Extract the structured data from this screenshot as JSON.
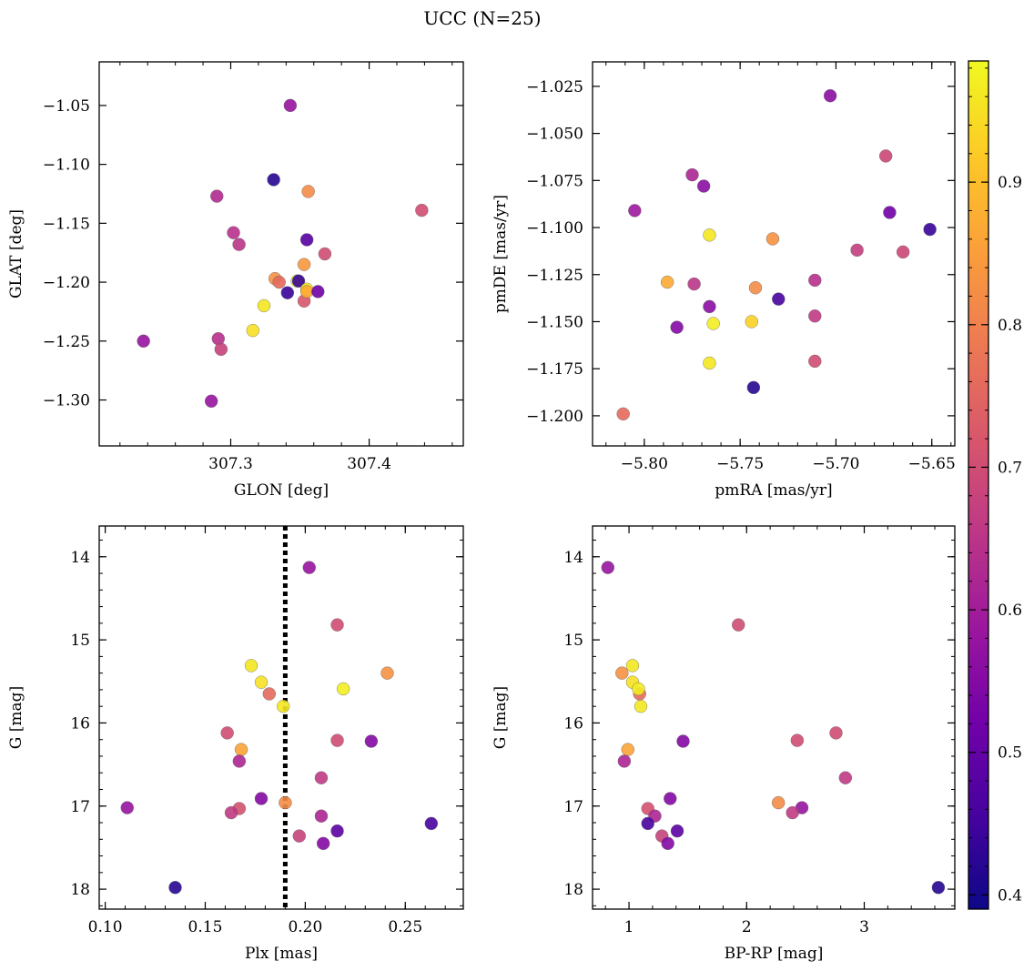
{
  "figure": {
    "suptitle": "UCC (N=25)"
  },
  "colorbar": {
    "vmin": 0.39,
    "vmax": 0.985,
    "ticks": [
      0.4,
      0.5,
      0.6,
      0.7,
      0.8,
      0.9
    ],
    "tick_labels": [
      "0.4",
      "0.5",
      "0.6",
      "0.7",
      "0.8",
      "0.9"
    ],
    "colormap": "plasma",
    "stops": [
      "#0d0887",
      "#46039f",
      "#7201a8",
      "#9c179e",
      "#bd3786",
      "#d8576b",
      "#ed7953",
      "#fb9f3a",
      "#fdca26",
      "#f0f921"
    ]
  },
  "chart_data": [
    {
      "id": "p1",
      "type": "scatter",
      "title": "",
      "xlabel": "GLON [deg]",
      "ylabel": "GLAT [deg]",
      "xlim": [
        307.205,
        307.468
      ],
      "ylim": [
        -1.339,
        -1.013
      ],
      "xticks": [
        307.3,
        307.4
      ],
      "xtick_labels": [
        "307.3",
        "307.4"
      ],
      "yticks": [
        -1.05,
        -1.1,
        -1.15,
        -1.2,
        -1.25,
        -1.3
      ],
      "ytick_labels": [
        "−1.05",
        "−1.10",
        "−1.15",
        "−1.20",
        "−1.25",
        "−1.30"
      ],
      "points": [
        {
          "x": 307.343,
          "y": -1.05,
          "c": 0.58
        },
        {
          "x": 307.331,
          "y": -1.113,
          "c": 0.42
        },
        {
          "x": 307.356,
          "y": -1.123,
          "c": 0.82
        },
        {
          "x": 307.29,
          "y": -1.127,
          "c": 0.63
        },
        {
          "x": 307.438,
          "y": -1.139,
          "c": 0.7
        },
        {
          "x": 307.302,
          "y": -1.158,
          "c": 0.64
        },
        {
          "x": 307.306,
          "y": -1.168,
          "c": 0.65
        },
        {
          "x": 307.355,
          "y": -1.164,
          "c": 0.48
        },
        {
          "x": 307.368,
          "y": -1.176,
          "c": 0.7
        },
        {
          "x": 307.353,
          "y": -1.185,
          "c": 0.84
        },
        {
          "x": 307.332,
          "y": -1.197,
          "c": 0.83
        },
        {
          "x": 307.335,
          "y": -1.2,
          "c": 0.76
        },
        {
          "x": 307.348,
          "y": -1.199,
          "c": 0.98
        },
        {
          "x": 307.349,
          "y": -1.199,
          "c": 0.44
        },
        {
          "x": 307.353,
          "y": -1.216,
          "c": 0.72
        },
        {
          "x": 307.355,
          "y": -1.206,
          "c": 0.97
        },
        {
          "x": 307.355,
          "y": -1.208,
          "c": 0.87
        },
        {
          "x": 307.341,
          "y": -1.209,
          "c": 0.44
        },
        {
          "x": 307.363,
          "y": -1.208,
          "c": 0.52
        },
        {
          "x": 307.324,
          "y": -1.22,
          "c": 0.96
        },
        {
          "x": 307.316,
          "y": -1.241,
          "c": 0.95
        },
        {
          "x": 307.237,
          "y": -1.25,
          "c": 0.58
        },
        {
          "x": 307.291,
          "y": -1.248,
          "c": 0.64
        },
        {
          "x": 307.293,
          "y": -1.257,
          "c": 0.68
        },
        {
          "x": 307.286,
          "y": -1.301,
          "c": 0.58
        }
      ]
    },
    {
      "id": "p2",
      "type": "scatter",
      "title": "",
      "xlabel": "pmRA [mas/yr]",
      "ylabel": "pmDE [mas/yr]",
      "xlim": [
        -5.827,
        -5.638
      ],
      "ylim": [
        -1.216,
        -1.012
      ],
      "xticks": [
        -5.8,
        -5.75,
        -5.7,
        -5.65
      ],
      "xtick_labels": [
        "−5.80",
        "−5.75",
        "−5.70",
        "−5.65"
      ],
      "yticks": [
        -1.025,
        -1.05,
        -1.075,
        -1.1,
        -1.125,
        -1.15,
        -1.175,
        -1.2
      ],
      "ytick_labels": [
        "−1.025",
        "−1.050",
        "−1.075",
        "−1.100",
        "−1.125",
        "−1.150",
        "−1.175",
        "−1.200"
      ],
      "points": [
        {
          "x": -5.703,
          "y": -1.03,
          "c": 0.56
        },
        {
          "x": -5.674,
          "y": -1.062,
          "c": 0.69
        },
        {
          "x": -5.775,
          "y": -1.072,
          "c": 0.62
        },
        {
          "x": -5.769,
          "y": -1.078,
          "c": 0.56
        },
        {
          "x": -5.805,
          "y": -1.091,
          "c": 0.59
        },
        {
          "x": -5.672,
          "y": -1.092,
          "c": 0.52
        },
        {
          "x": -5.651,
          "y": -1.101,
          "c": 0.44
        },
        {
          "x": -5.766,
          "y": -1.104,
          "c": 0.96
        },
        {
          "x": -5.733,
          "y": -1.106,
          "c": 0.83
        },
        {
          "x": -5.689,
          "y": -1.112,
          "c": 0.67
        },
        {
          "x": -5.665,
          "y": -1.113,
          "c": 0.69
        },
        {
          "x": -5.711,
          "y": -1.128,
          "c": 0.64
        },
        {
          "x": -5.788,
          "y": -1.129,
          "c": 0.87
        },
        {
          "x": -5.774,
          "y": -1.13,
          "c": 0.65
        },
        {
          "x": -5.742,
          "y": -1.132,
          "c": 0.82
        },
        {
          "x": -5.73,
          "y": -1.138,
          "c": 0.46
        },
        {
          "x": -5.766,
          "y": -1.142,
          "c": 0.56
        },
        {
          "x": -5.711,
          "y": -1.147,
          "c": 0.66
        },
        {
          "x": -5.744,
          "y": -1.15,
          "c": 0.93
        },
        {
          "x": -5.764,
          "y": -1.151,
          "c": 0.97
        },
        {
          "x": -5.783,
          "y": -1.153,
          "c": 0.55
        },
        {
          "x": -5.711,
          "y": -1.171,
          "c": 0.7
        },
        {
          "x": -5.766,
          "y": -1.172,
          "c": 0.96
        },
        {
          "x": -5.743,
          "y": -1.185,
          "c": 0.42
        },
        {
          "x": -5.811,
          "y": -1.199,
          "c": 0.76
        }
      ]
    },
    {
      "id": "p3",
      "type": "scatter",
      "title": "",
      "xlabel": "Plx [mas]",
      "ylabel": "G [mag]",
      "xlim": [
        0.097,
        0.279
      ],
      "ylim": [
        18.24,
        13.63
      ],
      "yinverted": true,
      "xticks": [
        0.1,
        0.15,
        0.2,
        0.25
      ],
      "xtick_labels": [
        "0.10",
        "0.15",
        "0.20",
        "0.25"
      ],
      "yticks": [
        14,
        15,
        16,
        17,
        18
      ],
      "ytick_labels": [
        "14",
        "15",
        "16",
        "17",
        "18"
      ],
      "vline": 0.19,
      "points": [
        {
          "x": 0.202,
          "y": 14.13,
          "c": 0.58
        },
        {
          "x": 0.216,
          "y": 14.82,
          "c": 0.7
        },
        {
          "x": 0.173,
          "y": 15.31,
          "c": 0.96
        },
        {
          "x": 0.241,
          "y": 15.4,
          "c": 0.83
        },
        {
          "x": 0.178,
          "y": 15.51,
          "c": 0.95
        },
        {
          "x": 0.219,
          "y": 15.59,
          "c": 0.97
        },
        {
          "x": 0.182,
          "y": 15.65,
          "c": 0.76
        },
        {
          "x": 0.189,
          "y": 15.8,
          "c": 0.96
        },
        {
          "x": 0.161,
          "y": 16.12,
          "c": 0.7
        },
        {
          "x": 0.216,
          "y": 16.21,
          "c": 0.7
        },
        {
          "x": 0.233,
          "y": 16.22,
          "c": 0.55
        },
        {
          "x": 0.168,
          "y": 16.32,
          "c": 0.86
        },
        {
          "x": 0.167,
          "y": 16.46,
          "c": 0.62
        },
        {
          "x": 0.208,
          "y": 16.66,
          "c": 0.66
        },
        {
          "x": 0.178,
          "y": 16.91,
          "c": 0.55
        },
        {
          "x": 0.19,
          "y": 16.96,
          "c": 0.82
        },
        {
          "x": 0.111,
          "y": 17.02,
          "c": 0.58
        },
        {
          "x": 0.167,
          "y": 17.03,
          "c": 0.71
        },
        {
          "x": 0.163,
          "y": 17.08,
          "c": 0.66
        },
        {
          "x": 0.208,
          "y": 17.12,
          "c": 0.62
        },
        {
          "x": 0.263,
          "y": 17.21,
          "c": 0.46
        },
        {
          "x": 0.216,
          "y": 17.3,
          "c": 0.49
        },
        {
          "x": 0.197,
          "y": 17.36,
          "c": 0.68
        },
        {
          "x": 0.209,
          "y": 17.45,
          "c": 0.55
        },
        {
          "x": 0.135,
          "y": 17.98,
          "c": 0.42
        }
      ]
    },
    {
      "id": "p4",
      "type": "scatter",
      "title": "",
      "xlabel": "BP-RP [mag]",
      "ylabel": "G [mag]",
      "xlim": [
        0.69,
        3.77
      ],
      "ylim": [
        18.24,
        13.63
      ],
      "yinverted": true,
      "xticks": [
        1,
        2,
        3
      ],
      "xtick_labels": [
        "1",
        "2",
        "3"
      ],
      "yticks": [
        14,
        15,
        16,
        17,
        18
      ],
      "ytick_labels": [
        "14",
        "15",
        "16",
        "17",
        "18"
      ],
      "points": [
        {
          "x": 0.82,
          "y": 14.13,
          "c": 0.58
        },
        {
          "x": 1.93,
          "y": 14.82,
          "c": 0.7
        },
        {
          "x": 0.94,
          "y": 15.4,
          "c": 0.83
        },
        {
          "x": 1.03,
          "y": 15.31,
          "c": 0.96
        },
        {
          "x": 1.03,
          "y": 15.51,
          "c": 0.95
        },
        {
          "x": 1.09,
          "y": 15.65,
          "c": 0.76
        },
        {
          "x": 1.08,
          "y": 15.59,
          "c": 0.97
        },
        {
          "x": 1.1,
          "y": 15.8,
          "c": 0.96
        },
        {
          "x": 2.76,
          "y": 16.12,
          "c": 0.7
        },
        {
          "x": 1.46,
          "y": 16.22,
          "c": 0.55
        },
        {
          "x": 2.43,
          "y": 16.21,
          "c": 0.7
        },
        {
          "x": 0.99,
          "y": 16.32,
          "c": 0.86
        },
        {
          "x": 0.96,
          "y": 16.46,
          "c": 0.62
        },
        {
          "x": 2.84,
          "y": 16.66,
          "c": 0.66
        },
        {
          "x": 1.35,
          "y": 16.91,
          "c": 0.55
        },
        {
          "x": 2.27,
          "y": 16.96,
          "c": 0.82
        },
        {
          "x": 2.47,
          "y": 17.02,
          "c": 0.58
        },
        {
          "x": 1.16,
          "y": 17.03,
          "c": 0.71
        },
        {
          "x": 2.39,
          "y": 17.08,
          "c": 0.66
        },
        {
          "x": 1.22,
          "y": 17.12,
          "c": 0.62
        },
        {
          "x": 1.16,
          "y": 17.21,
          "c": 0.46
        },
        {
          "x": 1.41,
          "y": 17.3,
          "c": 0.49
        },
        {
          "x": 1.28,
          "y": 17.36,
          "c": 0.68
        },
        {
          "x": 1.33,
          "y": 17.45,
          "c": 0.55
        },
        {
          "x": 3.63,
          "y": 17.98,
          "c": 0.42
        }
      ]
    }
  ]
}
